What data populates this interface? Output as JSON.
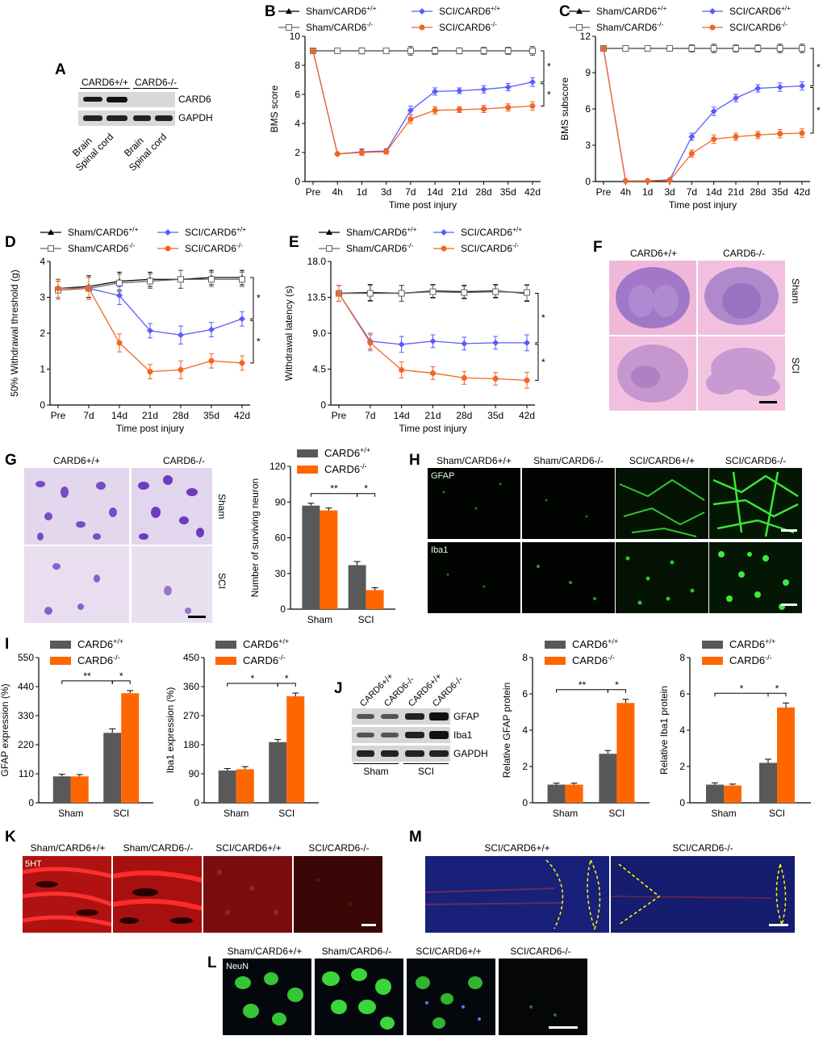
{
  "panels": {
    "A": "A",
    "B": "B",
    "C": "C",
    "D": "D",
    "E": "E",
    "F": "F",
    "G": "G",
    "H": "H",
    "I": "I",
    "J": "J",
    "K": "K",
    "L": "L",
    "M": "M"
  },
  "blotA": {
    "groups": [
      "CARD6+/+",
      "CARD6-/-"
    ],
    "bands": [
      "CARD6",
      "GAPDH"
    ],
    "lanes": [
      "Brain",
      "Spinal cord",
      "Brain",
      "Spinal cord"
    ]
  },
  "blotJ": {
    "lanes": [
      "CARD6+/+",
      "CARD6-/-",
      "CARD6+/+",
      "CARD6-/-"
    ],
    "bands": [
      "GFAP",
      "Iba1",
      "GAPDH"
    ],
    "groups": [
      "Sham",
      "SCI"
    ]
  },
  "legend_4": [
    "Sham/CARD6+/+",
    "SCI/CARD6+/+",
    "Sham/CARD6-/-",
    "SCI/CARD6-/-"
  ],
  "legend_2": [
    "CARD6+/+",
    "CARD6-/-"
  ],
  "panelF": {
    "cols": [
      "CARD6+/+",
      "CARD6-/-"
    ],
    "rows": [
      "Sham",
      "SCI"
    ]
  },
  "panelGimg": {
    "cols": [
      "CARD6+/+",
      "CARD6-/-"
    ],
    "rows": [
      "Sham",
      "SCI"
    ]
  },
  "panelH": {
    "cols": [
      "Sham/CARD6+/+",
      "Sham/CARD6-/-",
      "SCI/CARD6+/+",
      "SCI/CARD6-/-"
    ],
    "rows": [
      "GFAP",
      "Iba1"
    ]
  },
  "panelK": {
    "cols": [
      "Sham/CARD6+/+",
      "Sham/CARD6-/-",
      "SCI/CARD6+/+",
      "SCI/CARD6-/-"
    ],
    "stain": "5HT"
  },
  "panelL": {
    "cols": [
      "Sham/CARD6+/+",
      "Sham/CARD6-/-",
      "SCI/CARD6+/+",
      "SCI/CARD6-/-"
    ],
    "stain": "NeuN"
  },
  "panelM": {
    "cols": [
      "SCI/CARD6+/+",
      "SCI/CARD6-/-"
    ]
  },
  "colors": {
    "sham_wt": "#000000",
    "sham_ko": "#666666",
    "sci_wt": "#5b5bff",
    "sci_ko": "#f26522",
    "bar_wt": "#595959",
    "bar_ko": "#ff6600"
  },
  "chart_data": [
    {
      "id": "B",
      "type": "line",
      "x": [
        "Pre",
        "4h",
        "1d",
        "3d",
        "7d",
        "14d",
        "21d",
        "28d",
        "35d",
        "42d"
      ],
      "xlabel": "Time post injury",
      "ylabel": "BMS score",
      "ylim": [
        0,
        10
      ],
      "yticks": [
        "0",
        "2",
        "4",
        "6",
        "8",
        "10"
      ],
      "series": [
        {
          "name": "Sham/CARD6+/+",
          "values": [
            9,
            9,
            9,
            9,
            9,
            9,
            9,
            9,
            9,
            9
          ]
        },
        {
          "name": "Sham/CARD6-/-",
          "values": [
            9,
            9,
            9,
            9,
            9,
            9,
            9,
            9,
            9,
            9
          ]
        },
        {
          "name": "SCI/CARD6+/+",
          "values": [
            9,
            1.9,
            2.05,
            2.1,
            4.9,
            6.2,
            6.25,
            6.35,
            6.5,
            6.85
          ]
        },
        {
          "name": "SCI/CARD6-/-",
          "values": [
            9,
            1.9,
            2.0,
            2.05,
            4.3,
            4.9,
            4.95,
            5.0,
            5.1,
            5.2
          ]
        }
      ],
      "errors": [
        0,
        0.05,
        0.2,
        0.15,
        0.3,
        0.25,
        0.2,
        0.25,
        0.25,
        0.3
      ],
      "sig": [
        "*",
        "*"
      ]
    },
    {
      "id": "C",
      "type": "line",
      "x": [
        "Pre",
        "4h",
        "1d",
        "3d",
        "7d",
        "14d",
        "21d",
        "28d",
        "35d",
        "42d"
      ],
      "xlabel": "Time post injury",
      "ylabel": "BMS subscore",
      "ylim": [
        0,
        12
      ],
      "yticks": [
        "0",
        "3",
        "6",
        "9",
        "12"
      ],
      "series": [
        {
          "name": "Sham/CARD6+/+",
          "values": [
            11,
            11,
            11,
            11,
            11,
            11,
            11,
            11,
            11,
            11
          ]
        },
        {
          "name": "Sham/CARD6-/-",
          "values": [
            11,
            11,
            11,
            11,
            11,
            11,
            11,
            11,
            11,
            11
          ]
        },
        {
          "name": "SCI/CARD6+/+",
          "values": [
            11,
            0.05,
            0.05,
            0.15,
            3.7,
            5.8,
            6.9,
            7.7,
            7.8,
            7.9
          ]
        },
        {
          "name": "SCI/CARD6-/-",
          "values": [
            11,
            0.05,
            0.05,
            0.1,
            2.3,
            3.5,
            3.7,
            3.85,
            3.95,
            4.0
          ]
        }
      ],
      "errors": [
        0,
        0.05,
        0.05,
        0.1,
        0.3,
        0.35,
        0.3,
        0.3,
        0.35,
        0.35
      ],
      "sig": [
        "*",
        "*"
      ]
    },
    {
      "id": "D",
      "type": "line",
      "x": [
        "Pre",
        "7d",
        "14d",
        "21d",
        "28d",
        "35d",
        "42d"
      ],
      "xlabel": "Time post injury",
      "ylabel": "50% Withdrawal threshold (g)",
      "ylim": [
        0,
        4
      ],
      "yticks": [
        "0",
        "1",
        "2",
        "3",
        "4"
      ],
      "series": [
        {
          "name": "Sham/CARD6+/+",
          "values": [
            3.25,
            3.3,
            3.45,
            3.5,
            3.5,
            3.55,
            3.55
          ]
        },
        {
          "name": "Sham/CARD6-/-",
          "values": [
            3.2,
            3.25,
            3.4,
            3.45,
            3.5,
            3.5,
            3.5
          ]
        },
        {
          "name": "SCI/CARD6+/+",
          "values": [
            3.25,
            3.25,
            3.05,
            2.07,
            1.95,
            2.1,
            2.4
          ]
        },
        {
          "name": "SCI/CARD6-/-",
          "values": [
            3.25,
            3.25,
            1.73,
            0.93,
            0.98,
            1.23,
            1.17
          ]
        }
      ],
      "errors": [
        0.25,
        0.3,
        0.25,
        0.2,
        0.25,
        0.2,
        0.2
      ],
      "sig": [
        "*",
        "*"
      ]
    },
    {
      "id": "E",
      "type": "line",
      "x": [
        "Pre",
        "7d",
        "14d",
        "21d",
        "28d",
        "35d",
        "42d"
      ],
      "xlabel": "Time post injury",
      "ylabel": "Withdrawal latency (s)",
      "ylim": [
        0,
        18
      ],
      "yticks": [
        "0",
        "4.5",
        "9.0",
        "13.5",
        "18.0"
      ],
      "series": [
        {
          "name": "Sham/CARD6+/+",
          "values": [
            14.0,
            14.1,
            14.0,
            14.3,
            14.2,
            14.3,
            14.0
          ]
        },
        {
          "name": "Sham/CARD6-/-",
          "values": [
            14.0,
            14.0,
            14.0,
            14.2,
            14.1,
            14.2,
            14.1
          ]
        },
        {
          "name": "SCI/CARD6+/+",
          "values": [
            14.0,
            8.0,
            7.6,
            8.0,
            7.7,
            7.8,
            7.8
          ]
        },
        {
          "name": "SCI/CARD6-/-",
          "values": [
            14.0,
            7.8,
            4.4,
            4.0,
            3.4,
            3.3,
            3.1
          ]
        }
      ],
      "errors": [
        1.0,
        1.0,
        1.0,
        0.8,
        0.8,
        0.8,
        1.0
      ],
      "sig": [
        "*",
        "*"
      ]
    },
    {
      "id": "G",
      "type": "bar",
      "categories": [
        "Sham",
        "SCI"
      ],
      "ylabel": "Number of surviving neuron",
      "ylim": [
        0,
        120
      ],
      "yticks": [
        "0",
        "30",
        "60",
        "90",
        "120"
      ],
      "series": [
        {
          "name": "CARD6+/+",
          "values": [
            87,
            37
          ]
        },
        {
          "name": "CARD6-/-",
          "values": [
            83,
            16
          ]
        }
      ],
      "errors": [
        [
          2,
          3
        ],
        [
          2,
          2
        ]
      ],
      "sig": [
        "**",
        "*"
      ]
    },
    {
      "id": "I1",
      "type": "bar",
      "categories": [
        "Sham",
        "SCI"
      ],
      "ylabel": "GFAP expression (%)",
      "ylim": [
        0,
        550
      ],
      "yticks": [
        "0",
        "110",
        "220",
        "330",
        "440",
        "550"
      ],
      "series": [
        {
          "name": "CARD6+/+",
          "values": [
            100,
            265
          ]
        },
        {
          "name": "CARD6-/-",
          "values": [
            100,
            415
          ]
        }
      ],
      "errors": [
        [
          8,
          15
        ],
        [
          7,
          10
        ]
      ],
      "sig": [
        "**",
        "*"
      ]
    },
    {
      "id": "I2",
      "type": "bar",
      "categories": [
        "Sham",
        "SCI"
      ],
      "ylabel": "Iba1 expression (%)",
      "ylim": [
        0,
        450
      ],
      "yticks": [
        "0",
        "90",
        "180",
        "270",
        "360",
        "450"
      ],
      "series": [
        {
          "name": "CARD6+/+",
          "values": [
            100,
            188
          ]
        },
        {
          "name": "CARD6-/-",
          "values": [
            104,
            330
          ]
        }
      ],
      "errors": [
        [
          6,
          8
        ],
        [
          8,
          10
        ]
      ],
      "sig": [
        "*",
        "*"
      ]
    },
    {
      "id": "J1",
      "type": "bar",
      "categories": [
        "Sham",
        "SCI"
      ],
      "ylabel": "Relative GFAP protein",
      "ylim": [
        0,
        8
      ],
      "yticks": [
        "0",
        "2",
        "4",
        "6",
        "8"
      ],
      "series": [
        {
          "name": "CARD6+/+",
          "values": [
            1.0,
            2.7
          ]
        },
        {
          "name": "CARD6-/-",
          "values": [
            1.0,
            5.5
          ]
        }
      ],
      "errors": [
        [
          0.08,
          0.18
        ],
        [
          0.08,
          0.2
        ]
      ],
      "sig": [
        "**",
        "*"
      ]
    },
    {
      "id": "J2",
      "type": "bar",
      "categories": [
        "Sham",
        "SCI"
      ],
      "ylabel": "Relative Iba1 protein",
      "ylim": [
        0,
        8
      ],
      "yticks": [
        "0",
        "2",
        "4",
        "6",
        "8"
      ],
      "series": [
        {
          "name": "CARD6+/+",
          "values": [
            1.0,
            2.2
          ]
        },
        {
          "name": "CARD6-/-",
          "values": [
            0.95,
            5.25
          ]
        }
      ],
      "errors": [
        [
          0.1,
          0.2
        ],
        [
          0.08,
          0.25
        ]
      ],
      "sig": [
        "*",
        "*"
      ]
    }
  ]
}
